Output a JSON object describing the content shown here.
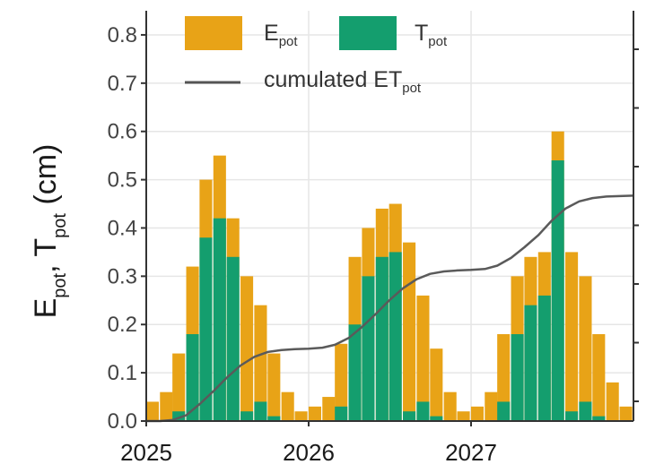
{
  "chart_data": {
    "type": "bar",
    "ylabel": {
      "main1": "E",
      "sub1": "pot",
      "sep": ", ",
      "main2": "T",
      "sub2": "pot",
      "unit": " (cm)"
    },
    "ylim": [
      0,
      0.85
    ],
    "yticks": [
      "0.0",
      "0.1",
      "0.2",
      "0.3",
      "0.4",
      "0.5",
      "0.6",
      "0.7",
      "0.8"
    ],
    "ytick_values": [
      0,
      0.1,
      0.2,
      0.3,
      0.4,
      0.5,
      0.6,
      0.7,
      0.8
    ],
    "x_range": [
      "2025-01-01",
      "2028-01-01"
    ],
    "xticks": [
      "2025",
      "2026",
      "2027"
    ],
    "xtick_dates": [
      "2025-01-01",
      "2026-01-01",
      "2027-01-01"
    ],
    "grid": true,
    "secondary_axis": "right, unlabeled ticks",
    "legend": {
      "placement": "top-left",
      "items": [
        {
          "main": "E",
          "sub": "pot",
          "color": "#E8A317",
          "kind": "fill"
        },
        {
          "main": "T",
          "sub": "pot",
          "color": "#149E6E",
          "kind": "fill"
        },
        {
          "main": "cumulated ET",
          "sub": "pot",
          "color": "#555555",
          "kind": "line"
        }
      ]
    },
    "series": [
      {
        "name": "Epot",
        "x": [
          "2025-01-15",
          "2025-02-15",
          "2025-03-15",
          "2025-04-15",
          "2025-05-15",
          "2025-06-15",
          "2025-07-15",
          "2025-08-15",
          "2025-09-15",
          "2025-10-15",
          "2025-11-15",
          "2025-12-15",
          "2026-01-15",
          "2026-02-15",
          "2026-03-15",
          "2026-04-15",
          "2026-05-15",
          "2026-06-15",
          "2026-07-15",
          "2026-08-15",
          "2026-09-15",
          "2026-10-15",
          "2026-11-15",
          "2026-12-15",
          "2027-01-15",
          "2027-02-15",
          "2027-03-15",
          "2027-04-15",
          "2027-05-15",
          "2027-06-15",
          "2027-07-15",
          "2027-08-15",
          "2027-09-15",
          "2027-10-15",
          "2027-11-15",
          "2027-12-15"
        ],
        "values": [
          0.04,
          0.06,
          0.14,
          0.32,
          0.5,
          0.55,
          0.42,
          0.3,
          0.24,
          0.14,
          0.06,
          0.02,
          0.03,
          0.05,
          0.16,
          0.34,
          0.4,
          0.44,
          0.45,
          0.37,
          0.26,
          0.15,
          0.06,
          0.02,
          0.03,
          0.06,
          0.18,
          0.3,
          0.34,
          0.35,
          0.6,
          0.35,
          0.3,
          0.18,
          0.08,
          0.03
        ]
      },
      {
        "name": "Tpot",
        "x": [
          "2025-01-15",
          "2025-02-15",
          "2025-03-15",
          "2025-04-15",
          "2025-05-15",
          "2025-06-15",
          "2025-07-15",
          "2025-08-15",
          "2025-09-15",
          "2025-10-15",
          "2025-11-15",
          "2025-12-15",
          "2026-01-15",
          "2026-02-15",
          "2026-03-15",
          "2026-04-15",
          "2026-05-15",
          "2026-06-15",
          "2026-07-15",
          "2026-08-15",
          "2026-09-15",
          "2026-10-15",
          "2026-11-15",
          "2026-12-15",
          "2027-01-15",
          "2027-02-15",
          "2027-03-15",
          "2027-04-15",
          "2027-05-15",
          "2027-06-15",
          "2027-07-15",
          "2027-08-15",
          "2027-09-15",
          "2027-10-15",
          "2027-11-15",
          "2027-12-15"
        ],
        "values": [
          0,
          0,
          0.02,
          0.18,
          0.38,
          0.42,
          0.34,
          0.02,
          0.04,
          0.01,
          0,
          0,
          0,
          0,
          0.03,
          0.2,
          0.3,
          0.34,
          0.35,
          0.02,
          0.04,
          0.01,
          0,
          0,
          0,
          0,
          0.04,
          0.18,
          0.24,
          0.26,
          0.54,
          0.02,
          0.04,
          0.01,
          0,
          0
        ]
      },
      {
        "name": "cumulated ETpot",
        "type": "line",
        "x": [
          "2025-01-01",
          "2025-02-01",
          "2025-03-01",
          "2025-04-01",
          "2025-05-01",
          "2025-06-01",
          "2025-07-01",
          "2025-08-01",
          "2025-09-01",
          "2025-10-01",
          "2025-11-01",
          "2025-12-01",
          "2026-01-01",
          "2026-02-01",
          "2026-03-01",
          "2026-04-01",
          "2026-05-01",
          "2026-06-01",
          "2026-07-01",
          "2026-08-01",
          "2026-09-01",
          "2026-10-01",
          "2026-11-01",
          "2026-12-01",
          "2027-01-01",
          "2027-02-01",
          "2027-03-01",
          "2027-04-01",
          "2027-05-01",
          "2027-06-01",
          "2027-07-01",
          "2027-08-01",
          "2027-09-01",
          "2027-10-01",
          "2027-11-01",
          "2027-12-01",
          "2028-01-01"
        ],
        "values": [
          0,
          0,
          0.002,
          0.012,
          0.035,
          0.062,
          0.09,
          0.115,
          0.133,
          0.143,
          0.147,
          0.149,
          0.15,
          0.152,
          0.158,
          0.172,
          0.195,
          0.222,
          0.25,
          0.275,
          0.294,
          0.305,
          0.31,
          0.312,
          0.313,
          0.315,
          0.322,
          0.338,
          0.36,
          0.385,
          0.415,
          0.44,
          0.455,
          0.462,
          0.465,
          0.466,
          0.467
        ]
      }
    ]
  }
}
